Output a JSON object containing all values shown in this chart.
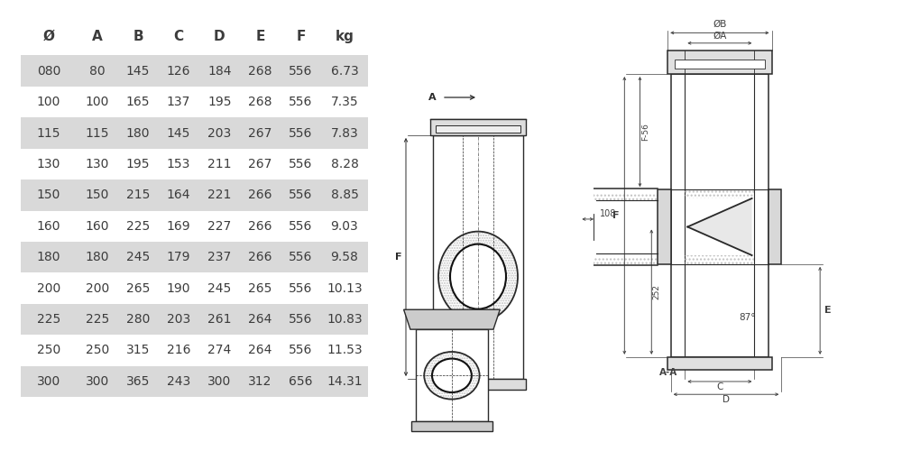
{
  "headers": [
    "Ø",
    "A",
    "B",
    "C",
    "D",
    "E",
    "F",
    "kg"
  ],
  "rows": [
    [
      "080",
      "80",
      "145",
      "126",
      "184",
      "268",
      "556",
      "6.73"
    ],
    [
      "100",
      "100",
      "165",
      "137",
      "195",
      "268",
      "556",
      "7.35"
    ],
    [
      "115",
      "115",
      "180",
      "145",
      "203",
      "267",
      "556",
      "7.83"
    ],
    [
      "130",
      "130",
      "195",
      "153",
      "211",
      "267",
      "556",
      "8.28"
    ],
    [
      "150",
      "150",
      "215",
      "164",
      "221",
      "266",
      "556",
      "8.85"
    ],
    [
      "160",
      "160",
      "225",
      "169",
      "227",
      "266",
      "556",
      "9.03"
    ],
    [
      "180",
      "180",
      "245",
      "179",
      "237",
      "266",
      "556",
      "9.58"
    ],
    [
      "200",
      "200",
      "265",
      "190",
      "245",
      "265",
      "556",
      "10.13"
    ],
    [
      "225",
      "225",
      "280",
      "203",
      "261",
      "264",
      "556",
      "10.83"
    ],
    [
      "250",
      "250",
      "315",
      "216",
      "274",
      "264",
      "556",
      "11.53"
    ],
    [
      "300",
      "300",
      "365",
      "243",
      "300",
      "312",
      "656",
      "14.31"
    ]
  ],
  "shaded_rows": [
    0,
    2,
    4,
    6,
    8,
    10
  ],
  "row_bg_shaded": "#d9d9d9",
  "row_bg_white": "#ffffff",
  "header_fontsize": 11,
  "cell_fontsize": 10,
  "bg_color": "#ffffff",
  "text_color": "#3c3c3c"
}
